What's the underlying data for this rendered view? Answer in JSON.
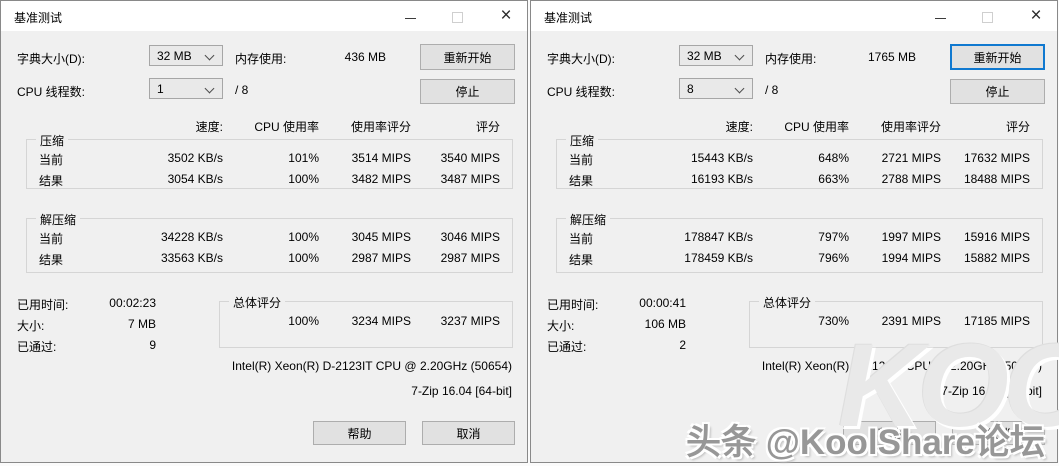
{
  "watermark": {
    "logo_text": "KOOL",
    "line": "头条 @KoolShare论坛"
  },
  "windows": [
    {
      "title": "基准测试",
      "restart_focused": false,
      "dictionary_label": "字典大小(D):",
      "dictionary_value": "32 MB",
      "memory_label": "内存使用:",
      "memory_value": "436 MB",
      "restart_button": "重新开始",
      "threads_label": "CPU 线程数:",
      "threads_value": "1",
      "threads_total": "/ 8",
      "stop_button": "停止",
      "columns": {
        "speed": "速度:",
        "usage": "CPU 使用率",
        "rating_usage": "使用率评分",
        "rating": "评分"
      },
      "compression": {
        "label": "压缩",
        "rows": [
          {
            "label": "当前",
            "speed": "3502 KB/s",
            "usage": "101%",
            "rating_usage": "3514 MIPS",
            "rating": "3540 MIPS"
          },
          {
            "label": "结果",
            "speed": "3054 KB/s",
            "usage": "100%",
            "rating_usage": "3482 MIPS",
            "rating": "3487 MIPS"
          }
        ]
      },
      "decompression": {
        "label": "解压缩",
        "rows": [
          {
            "label": "当前",
            "speed": "34228 KB/s",
            "usage": "100%",
            "rating_usage": "3045 MIPS",
            "rating": "3046 MIPS"
          },
          {
            "label": "结果",
            "speed": "33563 KB/s",
            "usage": "100%",
            "rating_usage": "2987 MIPS",
            "rating": "2987 MIPS"
          }
        ]
      },
      "elapsed_label": "已用时间:",
      "elapsed_value": "00:02:23",
      "size_label": "大小:",
      "size_value": "7 MB",
      "passes_label": "已通过:",
      "passes_value": "9",
      "total": {
        "label": "总体评分",
        "usage": "100%",
        "rating_usage": "3234 MIPS",
        "rating": "3237 MIPS"
      },
      "cpu_info": "Intel(R) Xeon(R) D-2123IT CPU @ 2.20GHz (50654)",
      "version_info": "7-Zip 16.04 [64-bit]",
      "help_button": "帮助",
      "cancel_button": "取消"
    },
    {
      "title": "基准测试",
      "restart_focused": true,
      "dictionary_label": "字典大小(D):",
      "dictionary_value": "32 MB",
      "memory_label": "内存使用:",
      "memory_value": "1765 MB",
      "restart_button": "重新开始",
      "threads_label": "CPU 线程数:",
      "threads_value": "8",
      "threads_total": "/ 8",
      "stop_button": "停止",
      "columns": {
        "speed": "速度:",
        "usage": "CPU 使用率",
        "rating_usage": "使用率评分",
        "rating": "评分"
      },
      "compression": {
        "label": "压缩",
        "rows": [
          {
            "label": "当前",
            "speed": "15443 KB/s",
            "usage": "648%",
            "rating_usage": "2721 MIPS",
            "rating": "17632 MIPS"
          },
          {
            "label": "结果",
            "speed": "16193 KB/s",
            "usage": "663%",
            "rating_usage": "2788 MIPS",
            "rating": "18488 MIPS"
          }
        ]
      },
      "decompression": {
        "label": "解压缩",
        "rows": [
          {
            "label": "当前",
            "speed": "178847 KB/s",
            "usage": "797%",
            "rating_usage": "1997 MIPS",
            "rating": "15916 MIPS"
          },
          {
            "label": "结果",
            "speed": "178459 KB/s",
            "usage": "796%",
            "rating_usage": "1994 MIPS",
            "rating": "15882 MIPS"
          }
        ]
      },
      "elapsed_label": "已用时间:",
      "elapsed_value": "00:00:41",
      "size_label": "大小:",
      "size_value": "106 MB",
      "passes_label": "已通过:",
      "passes_value": "2",
      "total": {
        "label": "总体评分",
        "usage": "730%",
        "rating_usage": "2391 MIPS",
        "rating": "17185 MIPS"
      },
      "cpu_info": "Intel(R) Xeon(R) D-2123IT CPU @ 2.20GHz (50654)",
      "version_info": "7-Zip 16.04 [64-bit]",
      "help_button": "帮助",
      "cancel_button": "取消"
    }
  ]
}
